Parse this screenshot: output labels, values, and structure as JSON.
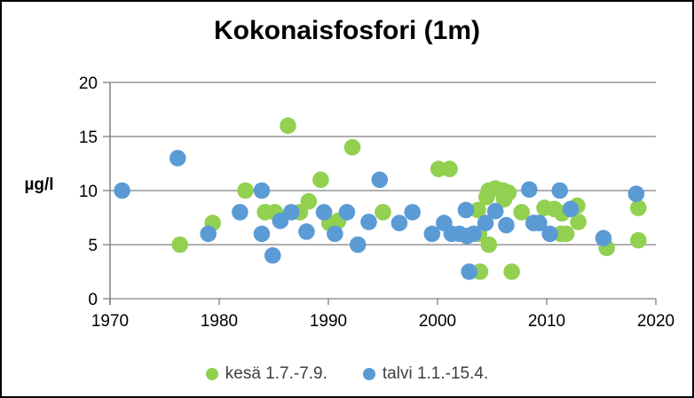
{
  "window": {
    "background": "#FFFFFF",
    "border_color": "#000000"
  },
  "colors": {
    "summer_green": "#92D050",
    "winter_blue": "#5B9BD5",
    "grid_gray": "#808080",
    "text_black": "#000000"
  },
  "legend": {
    "items": [
      {
        "label": "kesä 1.7.-7.9.",
        "color": "#92D050"
      },
      {
        "label": "talvi 1.1.-15.4.",
        "color": "#5B9BD5"
      }
    ]
  },
  "chart_data": {
    "type": "scatter",
    "title": "Kokonaisfosfori (1m)",
    "xlabel": "",
    "ylabel": "µg/l",
    "xlim": [
      1970,
      2020
    ],
    "ylim": [
      0,
      20
    ],
    "x_ticks": [
      1970,
      1980,
      1990,
      2000,
      2010,
      2020
    ],
    "y_ticks": [
      0,
      5,
      10,
      15,
      20
    ],
    "grid": "horizontal",
    "legend_position": "bottom",
    "marker": "circle",
    "series": [
      {
        "name": "kesä 1.7.-7.9.",
        "color": "#92D050",
        "points": [
          [
            1976.4,
            5.0
          ],
          [
            1979.4,
            7.0
          ],
          [
            1982.4,
            10.0
          ],
          [
            1984.2,
            8.0
          ],
          [
            1985.1,
            8.0
          ],
          [
            1986.3,
            16.0
          ],
          [
            1987.4,
            8.0
          ],
          [
            1988.2,
            9.0
          ],
          [
            1989.3,
            11.0
          ],
          [
            1990.1,
            7.0
          ],
          [
            1990.9,
            7.2
          ],
          [
            1992.2,
            14.0
          ],
          [
            1995.0,
            8.0
          ],
          [
            2000.1,
            12.0
          ],
          [
            2001.1,
            12.0
          ],
          [
            2003.7,
            8.2
          ],
          [
            2003.8,
            6.0
          ],
          [
            2003.9,
            2.5
          ],
          [
            2004.5,
            9.4
          ],
          [
            2004.7,
            10.0
          ],
          [
            2004.7,
            5.0
          ],
          [
            2005.3,
            10.2
          ],
          [
            2006.0,
            10.0
          ],
          [
            2006.1,
            9.2
          ],
          [
            2006.5,
            9.8
          ],
          [
            2006.8,
            2.5
          ],
          [
            2007.7,
            8.0
          ],
          [
            2009.8,
            8.4
          ],
          [
            2010.7,
            8.3
          ],
          [
            2011.3,
            6.0
          ],
          [
            2011.4,
            7.9
          ],
          [
            2011.8,
            6.0
          ],
          [
            2012.8,
            8.6
          ],
          [
            2012.9,
            7.1
          ],
          [
            2015.5,
            4.7
          ],
          [
            2018.4,
            8.4
          ],
          [
            2018.4,
            5.4
          ]
        ]
      },
      {
        "name": "talvi 1.1.-15.4.",
        "color": "#5B9BD5",
        "points": [
          [
            1971.1,
            10.0
          ],
          [
            1976.2,
            13.0
          ],
          [
            1979.0,
            6.0
          ],
          [
            1981.9,
            8.0
          ],
          [
            1983.9,
            10.0
          ],
          [
            1983.9,
            6.0
          ],
          [
            1984.9,
            4.0
          ],
          [
            1985.6,
            7.2
          ],
          [
            1986.6,
            8.0
          ],
          [
            1988.0,
            6.2
          ],
          [
            1989.6,
            8.0
          ],
          [
            1990.6,
            6.0
          ],
          [
            1991.7,
            8.0
          ],
          [
            1992.7,
            5.0
          ],
          [
            1993.7,
            7.1
          ],
          [
            1994.7,
            11.0
          ],
          [
            1996.5,
            7.0
          ],
          [
            1997.7,
            8.0
          ],
          [
            1999.5,
            6.0
          ],
          [
            2000.6,
            7.0
          ],
          [
            2001.3,
            6.0
          ],
          [
            2002.0,
            6.0
          ],
          [
            2002.6,
            8.2
          ],
          [
            2002.7,
            5.8
          ],
          [
            2002.9,
            2.5
          ],
          [
            2003.3,
            6.0
          ],
          [
            2004.4,
            7.0
          ],
          [
            2005.3,
            8.1
          ],
          [
            2006.3,
            6.8
          ],
          [
            2008.4,
            10.1
          ],
          [
            2008.8,
            7.0
          ],
          [
            2009.3,
            7.0
          ],
          [
            2010.3,
            6.0
          ],
          [
            2011.2,
            10.0
          ],
          [
            2012.2,
            8.3
          ],
          [
            2015.2,
            5.6
          ],
          [
            2018.2,
            9.7
          ]
        ]
      }
    ]
  }
}
